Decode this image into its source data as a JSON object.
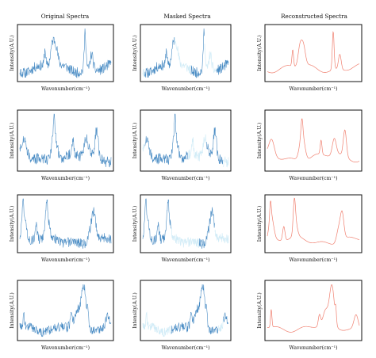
{
  "figure": {
    "column_titles": [
      "Original Spectra",
      "Masked Spectra",
      "Reconstructed Spectra"
    ],
    "xlabel": "Wavenumber(cm⁻¹)",
    "ylabel": "Intensity(A.U.)",
    "colors": {
      "original": "#4a8cc4",
      "masked": "#4a8cc4",
      "masked_faint": "#d2ecf7",
      "reconstructed": "#f08070",
      "frame": "#111111"
    }
  },
  "chart_data": [
    {
      "row": 1,
      "type": "line",
      "seed": 11,
      "mask": [
        [
          0.0,
          0.02
        ],
        [
          0.37,
          0.56
        ],
        [
          0.72,
          0.86
        ]
      ],
      "panels": [
        "Original Spectra",
        "Masked Spectra",
        "Reconstructed Spectra"
      ]
    },
    {
      "row": 2,
      "type": "line",
      "seed": 27,
      "mask": [
        [
          0.0,
          0.02
        ],
        [
          0.53,
          0.74
        ],
        [
          0.94,
          1.0
        ]
      ],
      "panels": [
        "Original Spectra",
        "Masked Spectra",
        "Reconstructed Spectra"
      ]
    },
    {
      "row": 3,
      "type": "line",
      "seed": 43,
      "mask": [
        [
          0.33,
          0.66
        ],
        [
          0.84,
          1.0
        ]
      ],
      "panels": [
        "Original Spectra",
        "Masked Spectra",
        "Reconstructed Spectra"
      ]
    },
    {
      "row": 4,
      "type": "line",
      "seed": 59,
      "mask": [
        [
          0.0,
          0.33
        ],
        [
          0.88,
          0.94
        ]
      ],
      "panels": [
        "Original Spectra",
        "Masked Spectra",
        "Reconstructed Spectra"
      ]
    }
  ]
}
